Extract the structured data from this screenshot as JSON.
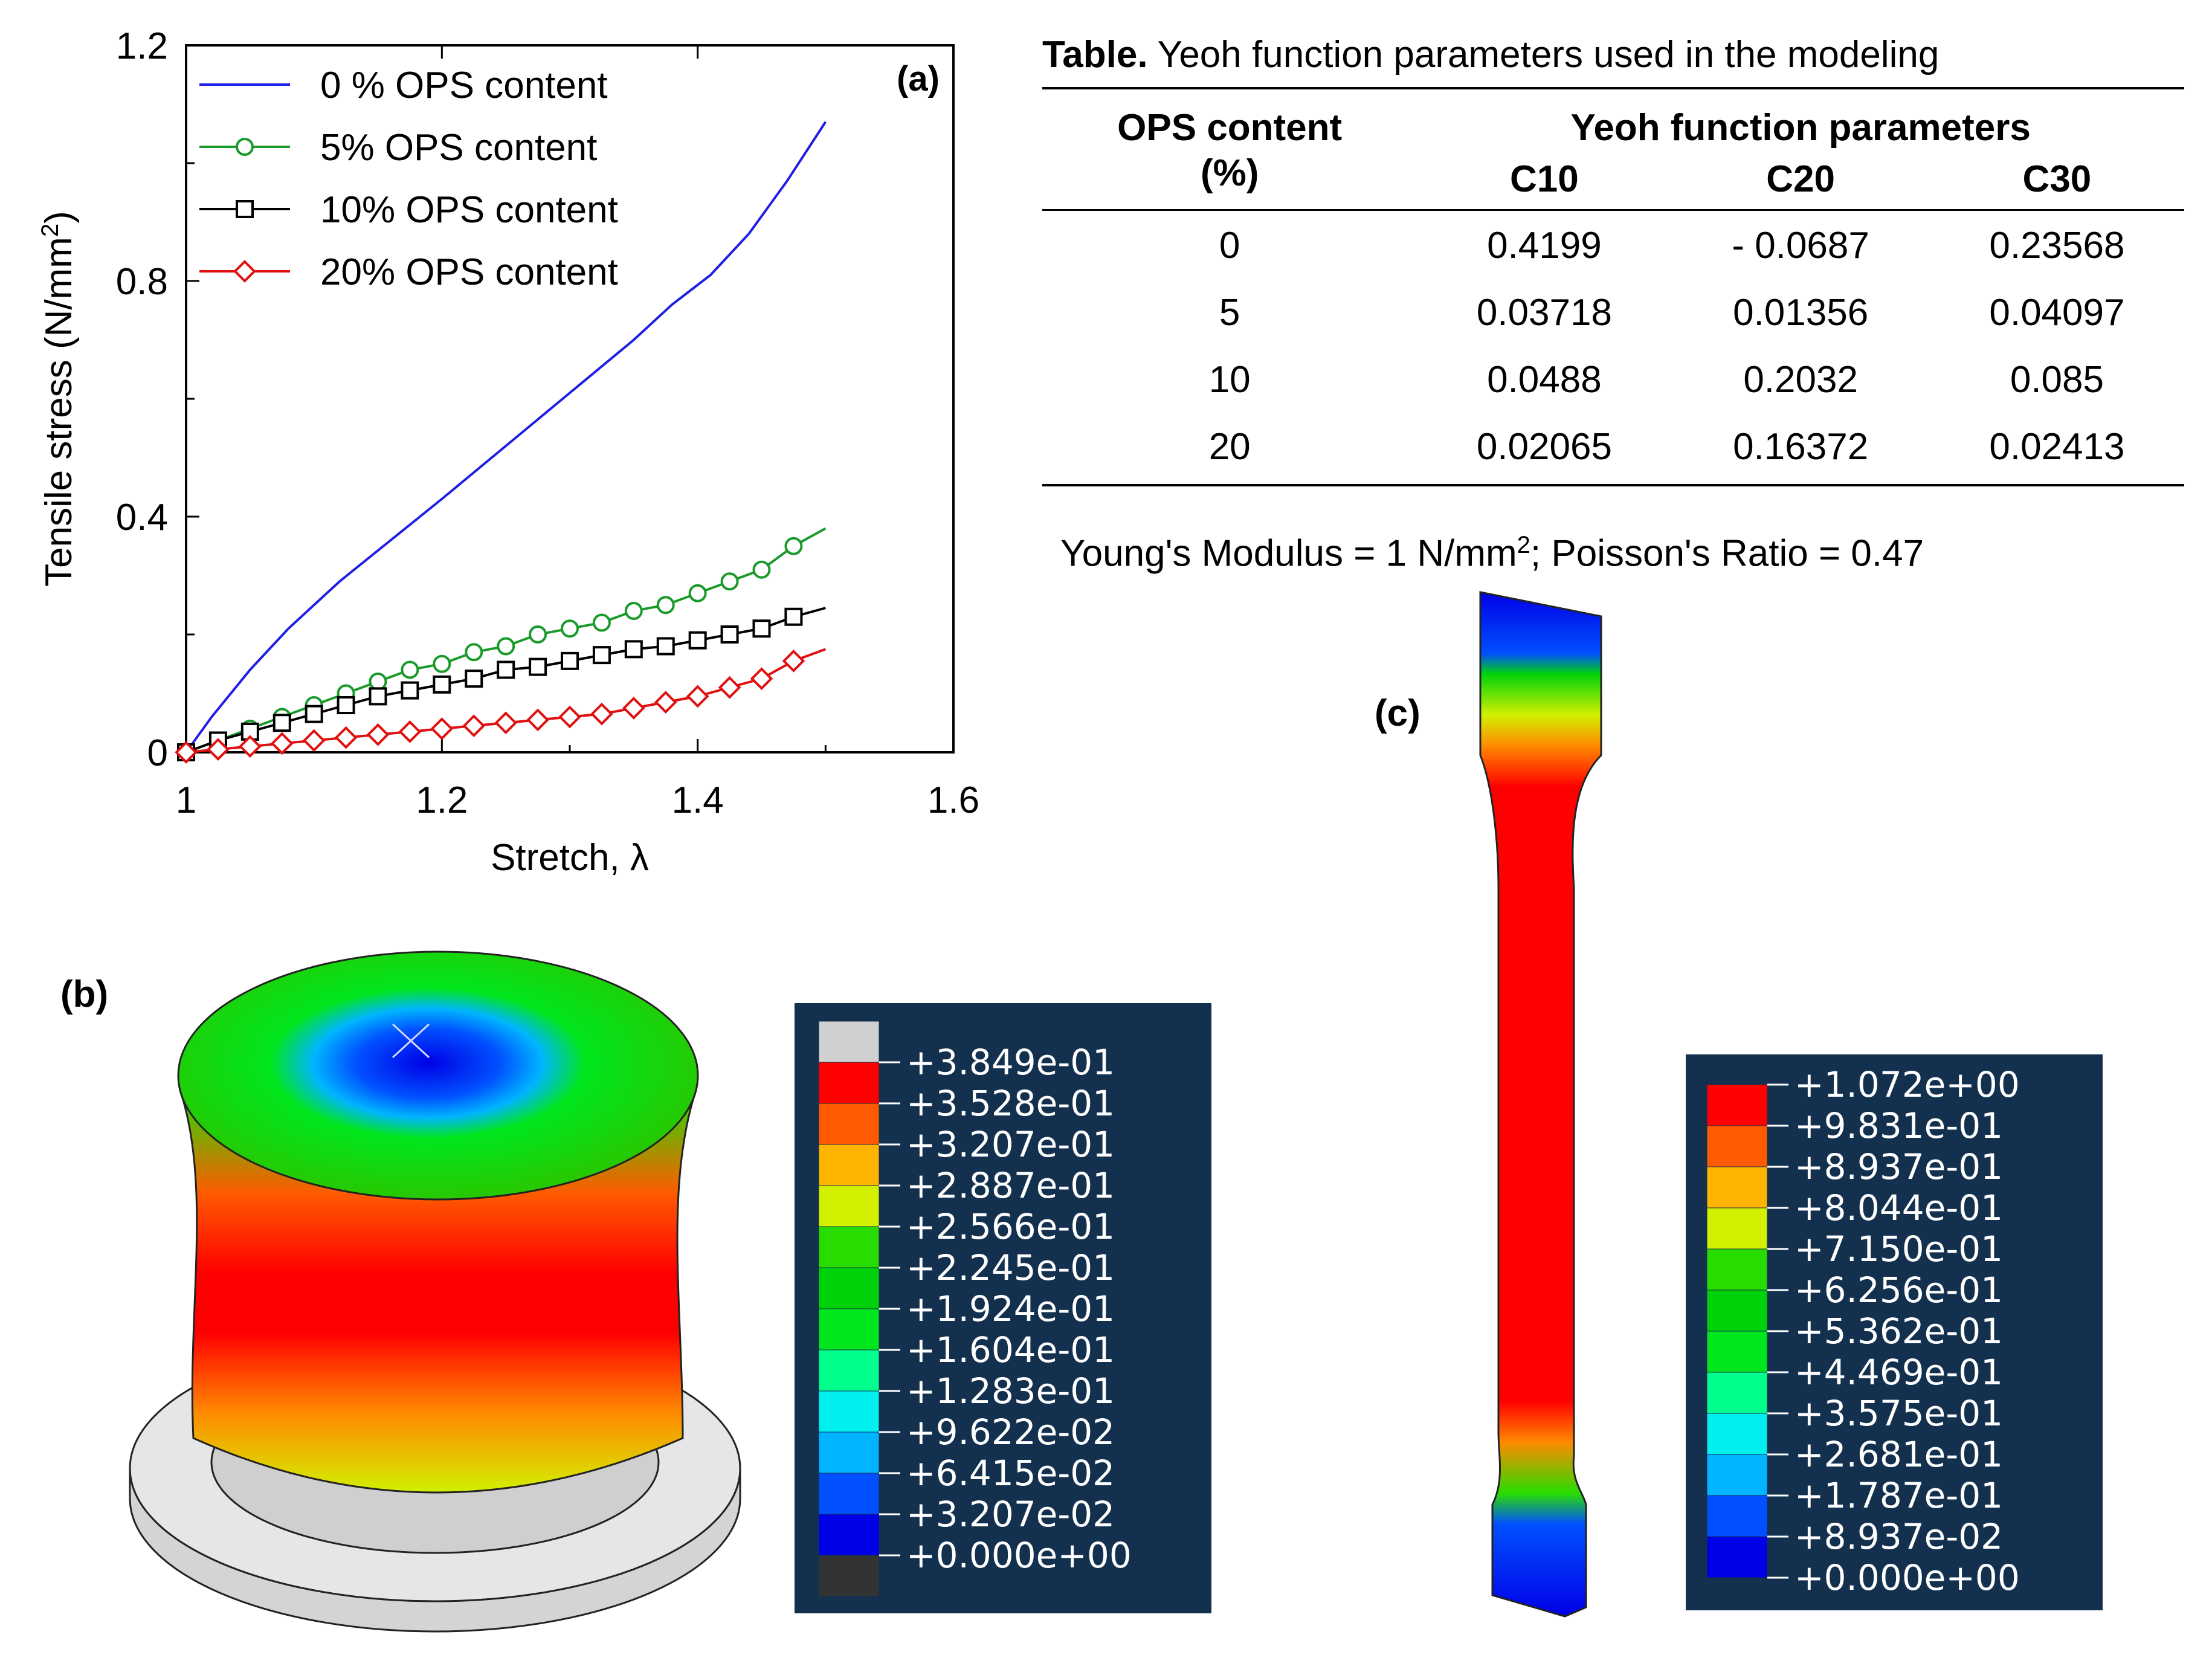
{
  "chart_data": {
    "type": "line",
    "panel_label": "(a)",
    "xlabel": "Stretch, λ",
    "ylabel": "Tensile stress (N/mm",
    "ylabel_sup": "2",
    "ylabel_tail": ")",
    "xlim": [
      1,
      1.6
    ],
    "ylim": [
      0,
      1.2
    ],
    "xticks": [
      1,
      1.2,
      1.4,
      1.6
    ],
    "xtick_labels": [
      "1",
      "1.2",
      "1.4",
      "1.6"
    ],
    "yticks": [
      0,
      0.4,
      0.8,
      1.2
    ],
    "ytick_labels": [
      "0",
      "0.4",
      "0.8",
      "1.2"
    ],
    "legend_position": "top-left",
    "series": [
      {
        "name": "0 % OPS content",
        "color": "#1f1fe6",
        "marker": "none",
        "x": [
          1.0,
          1.02,
          1.05,
          1.08,
          1.12,
          1.16,
          1.2,
          1.25,
          1.3,
          1.35,
          1.38,
          1.41,
          1.44,
          1.47,
          1.5
        ],
        "y": [
          0.0,
          0.06,
          0.14,
          0.21,
          0.29,
          0.36,
          0.43,
          0.52,
          0.61,
          0.7,
          0.76,
          0.81,
          0.88,
          0.97,
          1.07
        ]
      },
      {
        "name": "5% OPS content",
        "color": "#1a9a2a",
        "marker": "circle",
        "x": [
          1.0,
          1.025,
          1.05,
          1.075,
          1.1,
          1.125,
          1.15,
          1.175,
          1.2,
          1.225,
          1.25,
          1.275,
          1.3,
          1.325,
          1.35,
          1.375,
          1.4,
          1.425,
          1.45,
          1.475,
          1.5
        ],
        "y": [
          0.0,
          0.02,
          0.04,
          0.06,
          0.08,
          0.1,
          0.12,
          0.14,
          0.15,
          0.17,
          0.18,
          0.2,
          0.21,
          0.22,
          0.24,
          0.25,
          0.27,
          0.29,
          0.31,
          0.35,
          0.38
        ]
      },
      {
        "name": "10% OPS content",
        "color": "#000000",
        "marker": "square",
        "x": [
          1.0,
          1.025,
          1.05,
          1.075,
          1.1,
          1.125,
          1.15,
          1.175,
          1.2,
          1.225,
          1.25,
          1.275,
          1.3,
          1.325,
          1.35,
          1.375,
          1.4,
          1.425,
          1.45,
          1.475,
          1.5
        ],
        "y": [
          0.0,
          0.02,
          0.035,
          0.05,
          0.065,
          0.08,
          0.095,
          0.105,
          0.115,
          0.125,
          0.14,
          0.145,
          0.155,
          0.165,
          0.175,
          0.18,
          0.19,
          0.2,
          0.21,
          0.23,
          0.245
        ]
      },
      {
        "name": "20% OPS content",
        "color": "#e01010",
        "marker": "diamond",
        "x": [
          1.0,
          1.025,
          1.05,
          1.075,
          1.1,
          1.125,
          1.15,
          1.175,
          1.2,
          1.225,
          1.25,
          1.275,
          1.3,
          1.325,
          1.35,
          1.375,
          1.4,
          1.425,
          1.45,
          1.475,
          1.5
        ],
        "y": [
          0.0,
          0.005,
          0.01,
          0.015,
          0.02,
          0.025,
          0.03,
          0.035,
          0.04,
          0.045,
          0.05,
          0.055,
          0.06,
          0.065,
          0.075,
          0.085,
          0.095,
          0.11,
          0.125,
          0.155,
          0.175
        ]
      }
    ]
  },
  "table": {
    "caption_bold": "Table.",
    "caption_text": " Yeoh function parameters used in the modeling",
    "header_ops": "OPS content",
    "header_ops_unit": "(%)",
    "header_group": "Yeoh function parameters",
    "columns": [
      "C10",
      "C20",
      "C30"
    ],
    "rows": [
      [
        "0",
        "0.4199",
        "- 0.0687",
        "0.23568"
      ],
      [
        "5",
        "0.03718",
        "0.01356",
        "0.04097"
      ],
      [
        "10",
        "0.0488",
        "0.2032",
        "0.085"
      ],
      [
        "20",
        "0.02065",
        "0.16372",
        "0.02413"
      ]
    ],
    "note_prefix": "Young's Modulus = 1 N/mm",
    "note_sup": "2",
    "note_suffix": "; Poisson's Ratio = 0.47"
  },
  "panel_b": {
    "label": "(b)",
    "legend_values": [
      "+3.849e-01",
      "+3.528e-01",
      "+3.207e-01",
      "+2.887e-01",
      "+2.566e-01",
      "+2.245e-01",
      "+1.924e-01",
      "+1.604e-01",
      "+1.283e-01",
      "+9.622e-02",
      "+6.415e-02",
      "+3.207e-02",
      "+0.000e+00"
    ],
    "legend_colors": [
      "#d0d0d0",
      "#ff0000",
      "#ff5a00",
      "#ffb400",
      "#d2f000",
      "#28dc00",
      "#00d20a",
      "#00e61e",
      "#00ff8c",
      "#00f0f0",
      "#00b4ff",
      "#0050ff",
      "#0000e6",
      "#333333"
    ]
  },
  "panel_c": {
    "label": "(c)",
    "legend_values": [
      "+1.072e+00",
      "+9.831e-01",
      "+8.937e-01",
      "+8.044e-01",
      "+7.150e-01",
      "+6.256e-01",
      "+5.362e-01",
      "+4.469e-01",
      "+3.575e-01",
      "+2.681e-01",
      "+1.787e-01",
      "+8.937e-02",
      "+0.000e+00"
    ],
    "legend_colors": [
      "#ff0000",
      "#ff5a00",
      "#ffb400",
      "#d2f000",
      "#28dc00",
      "#00d20a",
      "#00e61e",
      "#00ff8c",
      "#00f0f0",
      "#00b4ff",
      "#0050ff",
      "#0000e6"
    ]
  }
}
